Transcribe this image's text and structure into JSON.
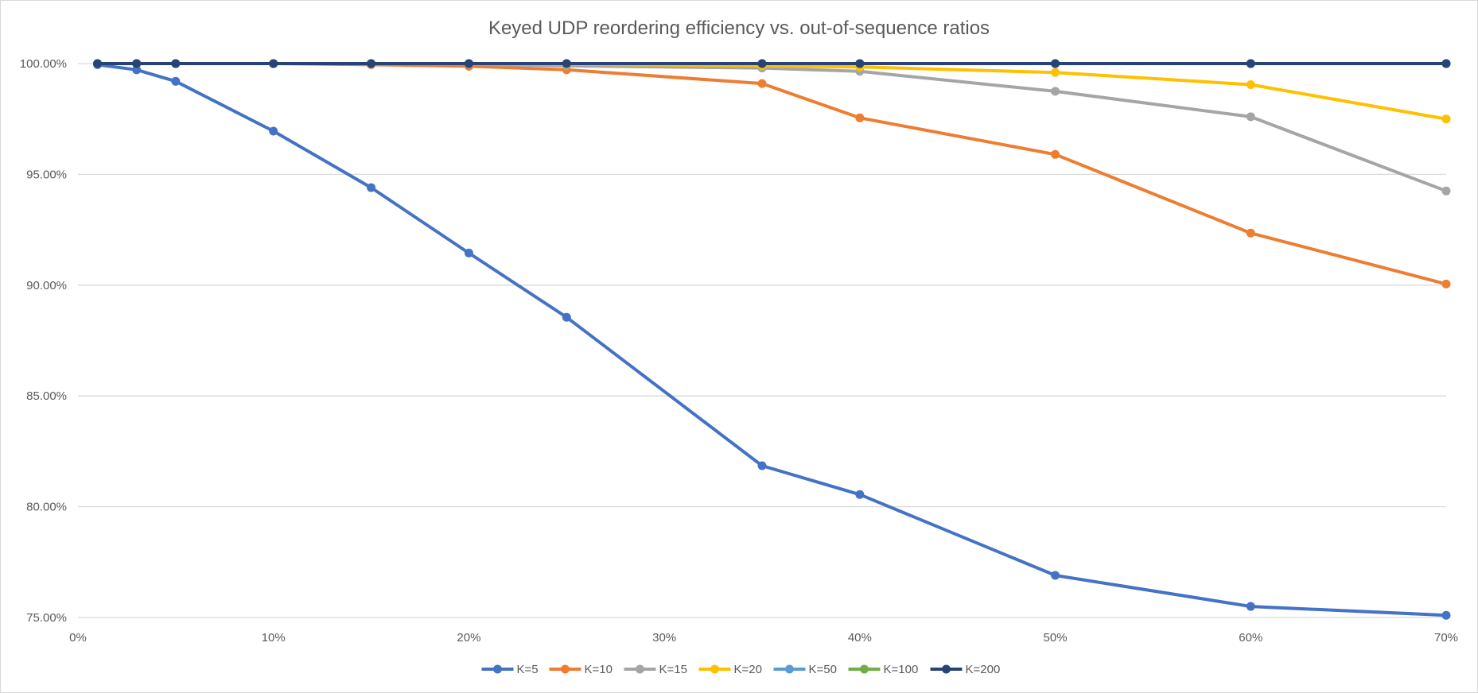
{
  "chart_data": {
    "type": "line",
    "title": "Keyed UDP reordering efficiency vs. out-of-sequence ratios",
    "xlabel": "",
    "ylabel": "",
    "xlim": [
      0,
      70
    ],
    "ylim": [
      75,
      100
    ],
    "x_ticks": [
      0,
      10,
      20,
      30,
      40,
      50,
      60,
      70
    ],
    "x_tick_labels": [
      "0%",
      "10%",
      "20%",
      "30%",
      "40%",
      "50%",
      "60%",
      "70%"
    ],
    "y_ticks": [
      75,
      80,
      85,
      90,
      95,
      100
    ],
    "y_tick_labels": [
      "75.00%",
      "80.00%",
      "85.00%",
      "90.00%",
      "95.00%",
      "100.00%"
    ],
    "grid": "horizontal",
    "legend_position": "bottom",
    "x": [
      1,
      3,
      5,
      10,
      15,
      20,
      25,
      35,
      40,
      50,
      60,
      70
    ],
    "series": [
      {
        "name": "K=5",
        "color": "#4472C4",
        "values": [
          99.95,
          99.72,
          99.2,
          96.95,
          94.4,
          91.45,
          88.55,
          81.85,
          80.55,
          76.9,
          75.5,
          75.1
        ]
      },
      {
        "name": "K=10",
        "color": "#ED7D31",
        "values": [
          100.0,
          100.0,
          100.0,
          100.0,
          99.95,
          99.88,
          99.72,
          99.1,
          97.55,
          95.9,
          92.35,
          90.05
        ]
      },
      {
        "name": "K=15",
        "color": "#A5A5A5",
        "values": [
          100.0,
          100.0,
          100.0,
          100.0,
          100.0,
          99.97,
          99.9,
          99.8,
          99.65,
          98.75,
          97.6,
          94.25
        ]
      },
      {
        "name": "K=20",
        "color": "#FFC000",
        "values": [
          100.0,
          100.0,
          100.0,
          100.0,
          100.0,
          100.0,
          99.97,
          99.9,
          99.85,
          99.6,
          99.05,
          97.5
        ]
      },
      {
        "name": "K=50",
        "color": "#5B9BD5",
        "values": [
          100.0,
          100.0,
          100.0,
          100.0,
          100.0,
          100.0,
          100.0,
          100.0,
          100.0,
          100.0,
          100.0,
          100.0
        ]
      },
      {
        "name": "K=100",
        "color": "#70AD47",
        "values": [
          100.0,
          100.0,
          100.0,
          100.0,
          100.0,
          100.0,
          100.0,
          100.0,
          100.0,
          100.0,
          100.0,
          100.0
        ]
      },
      {
        "name": "K=200",
        "color": "#264478",
        "values": [
          100.0,
          100.0,
          100.0,
          100.0,
          100.0,
          100.0,
          100.0,
          100.0,
          100.0,
          100.0,
          100.0,
          100.0
        ]
      }
    ]
  }
}
